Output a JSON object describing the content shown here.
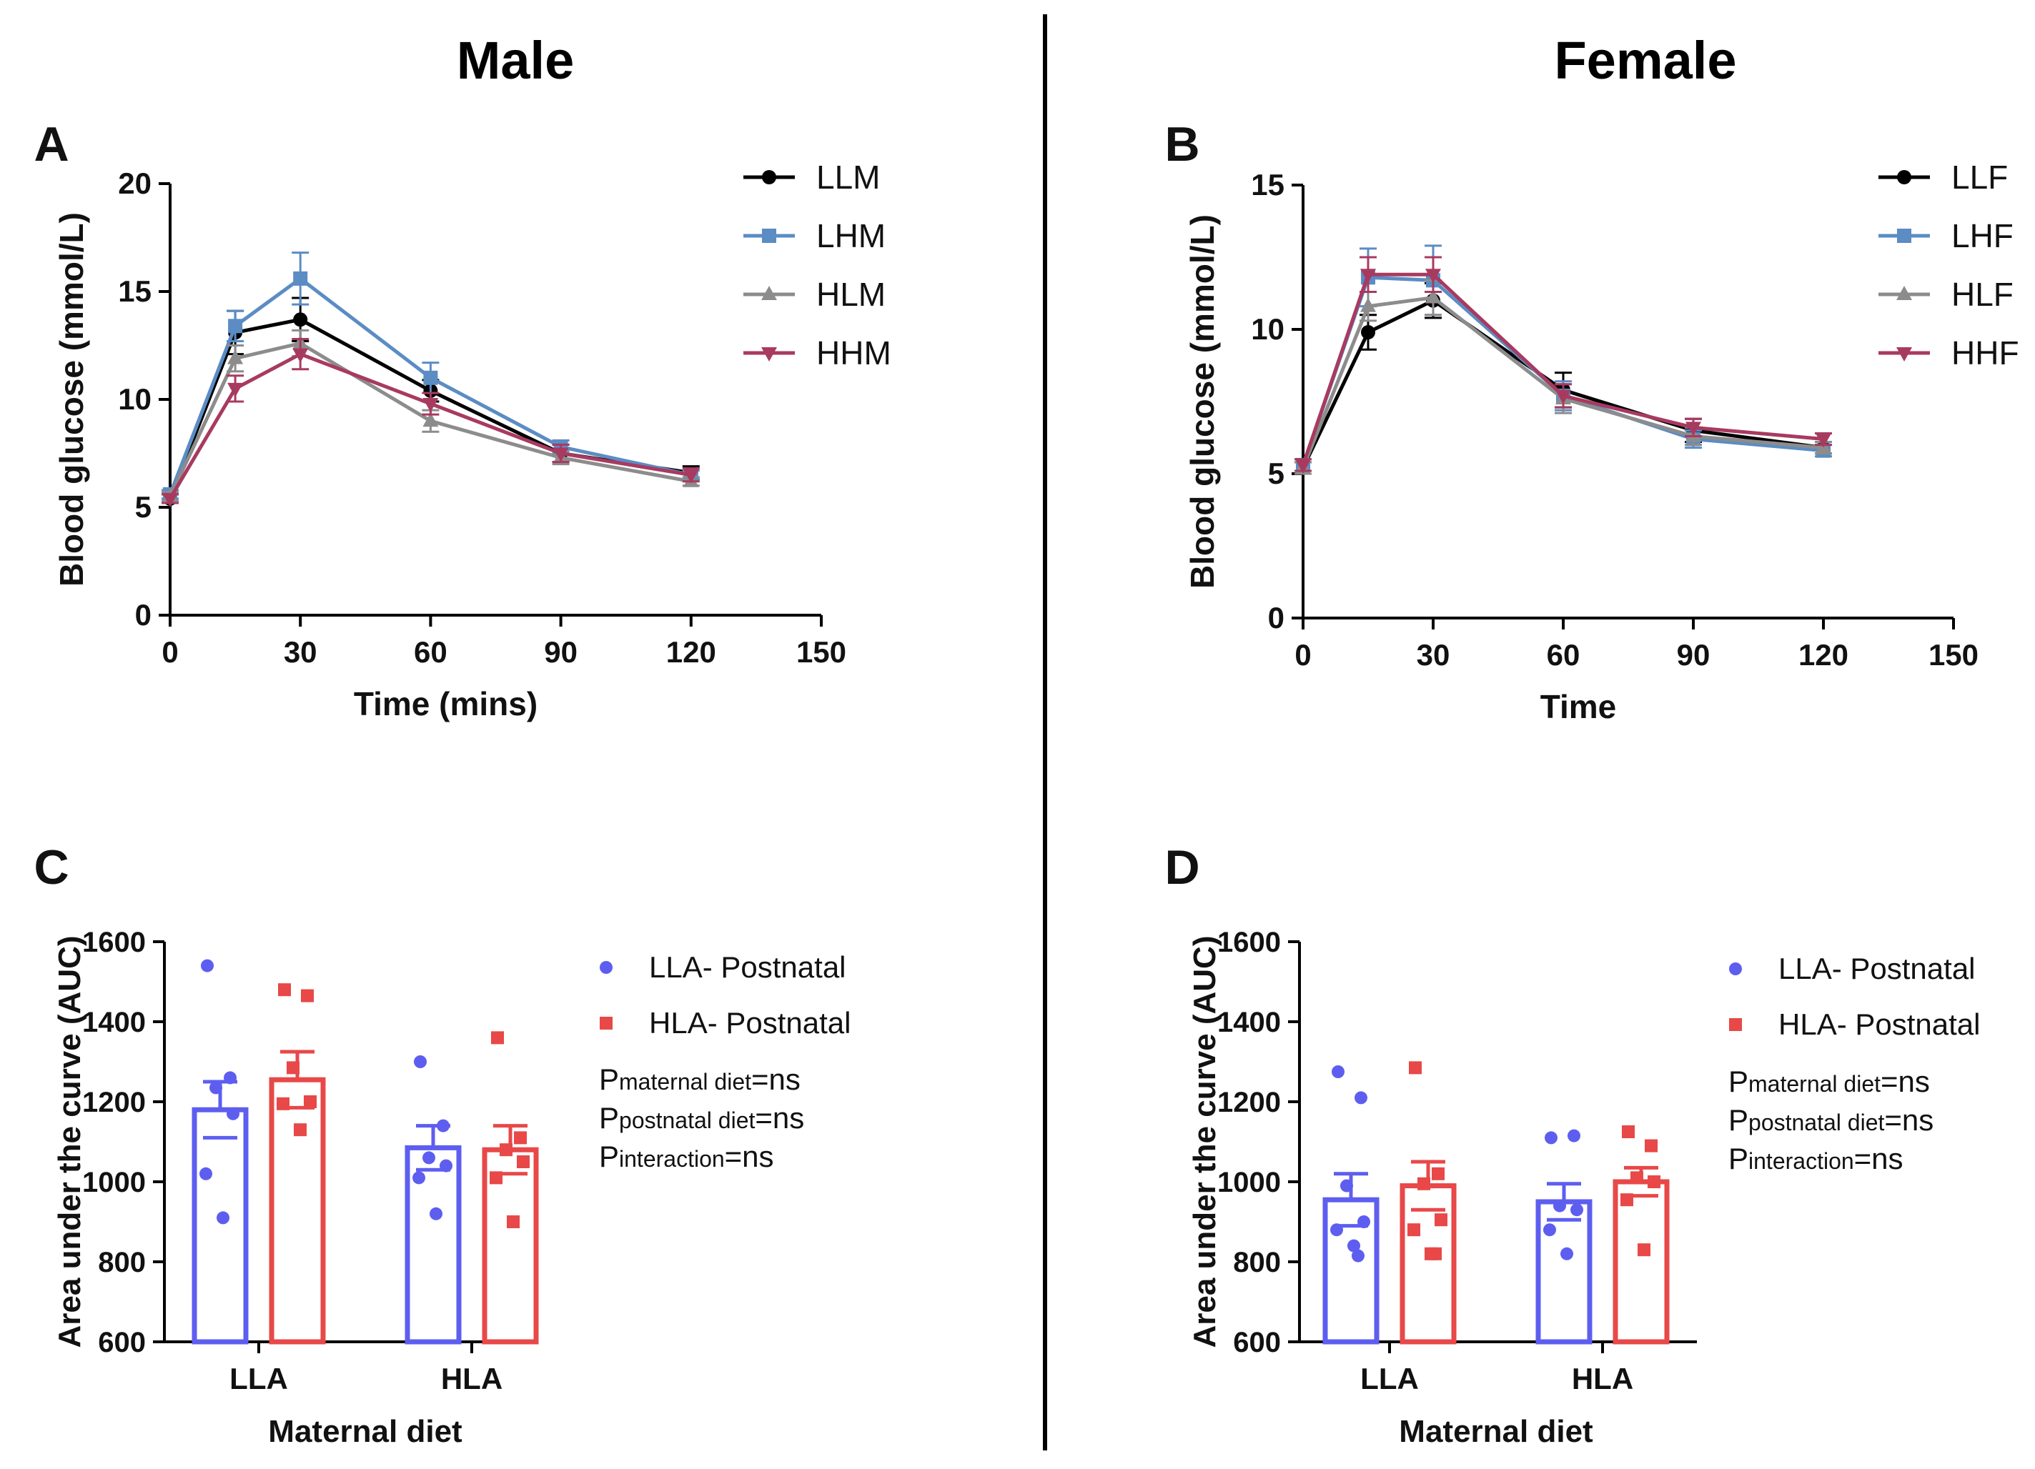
{
  "headers": {
    "left": "Male",
    "right": "Female"
  },
  "legend_colors": {
    "LLM": "#000000",
    "LHM": "#5b8cc4",
    "HLM": "#8c8c8c",
    "HHM": "#a83a60",
    "blue": "#5d5ef0",
    "red": "#e84848"
  },
  "chart_data": [
    {
      "panel": "A",
      "type": "line",
      "title": "Male",
      "xlabel": "Time (mins)",
      "ylabel": "Blood glucose (mmol/L)",
      "xlim": [
        0,
        150
      ],
      "ylim": [
        0,
        20
      ],
      "xticks": [
        0,
        30,
        60,
        90,
        120,
        150
      ],
      "yticks": [
        0,
        5,
        10,
        15,
        20
      ],
      "x": [
        0,
        15,
        30,
        60,
        90,
        120
      ],
      "series": [
        {
          "name": "LLM",
          "color": "#000000",
          "marker": "circle",
          "values": [
            5.4,
            13.1,
            13.7,
            10.4,
            7.5,
            6.6
          ],
          "err": [
            0.2,
            1.0,
            1.0,
            0.5,
            0.4,
            0.3
          ]
        },
        {
          "name": "LHM",
          "color": "#5b8cc4",
          "marker": "square",
          "values": [
            5.6,
            13.4,
            15.6,
            11.0,
            7.8,
            6.5
          ],
          "err": [
            0.2,
            0.7,
            1.2,
            0.7,
            0.3,
            0.2
          ]
        },
        {
          "name": "HLM",
          "color": "#8c8c8c",
          "marker": "triangle-up",
          "values": [
            5.5,
            11.9,
            12.6,
            9.0,
            7.3,
            6.2
          ],
          "err": [
            0.2,
            0.6,
            0.6,
            0.5,
            0.3,
            0.2
          ]
        },
        {
          "name": "HHM",
          "color": "#a83a60",
          "marker": "triangle-down",
          "values": [
            5.4,
            10.5,
            12.1,
            9.8,
            7.5,
            6.5
          ],
          "err": [
            0.2,
            0.6,
            0.7,
            0.5,
            0.4,
            0.3
          ]
        }
      ]
    },
    {
      "panel": "B",
      "type": "line",
      "title": "Female",
      "xlabel": "Time",
      "ylabel": "Blood glucose (mmol/L)",
      "xlim": [
        0,
        150
      ],
      "ylim": [
        0,
        15
      ],
      "xticks": [
        0,
        30,
        60,
        90,
        120,
        150
      ],
      "yticks": [
        0,
        5,
        10,
        15
      ],
      "x": [
        0,
        15,
        30,
        60,
        90,
        120
      ],
      "series": [
        {
          "name": "LLF",
          "color": "#000000",
          "marker": "circle",
          "values": [
            5.2,
            9.9,
            11.0,
            7.9,
            6.5,
            5.9
          ],
          "err": [
            0.2,
            0.6,
            0.6,
            0.6,
            0.4,
            0.2
          ]
        },
        {
          "name": "LHF",
          "color": "#5b8cc4",
          "marker": "square",
          "values": [
            5.3,
            11.8,
            11.7,
            7.7,
            6.2,
            5.8
          ],
          "err": [
            0.2,
            1.0,
            1.2,
            0.5,
            0.3,
            0.2
          ]
        },
        {
          "name": "HLF",
          "color": "#8c8c8c",
          "marker": "triangle-up",
          "values": [
            5.2,
            10.8,
            11.1,
            7.6,
            6.3,
            5.9
          ],
          "err": [
            0.2,
            0.5,
            0.6,
            0.5,
            0.3,
            0.2
          ]
        },
        {
          "name": "HHF",
          "color": "#a83a60",
          "marker": "triangle-down",
          "values": [
            5.3,
            11.9,
            11.9,
            7.7,
            6.6,
            6.2
          ],
          "err": [
            0.2,
            0.6,
            0.6,
            0.4,
            0.3,
            0.2
          ]
        }
      ]
    },
    {
      "panel": "C",
      "type": "bar",
      "xlabel": "Maternal diet",
      "ylabel": "Area under the curve (AUC)",
      "ylim": [
        600,
        1600
      ],
      "yticks": [
        600,
        800,
        1000,
        1200,
        1400,
        1600
      ],
      "categories": [
        "LLA",
        "HLA"
      ],
      "series": [
        {
          "name": "LLA- Postnatal",
          "color": "#5d5ef0",
          "marker": "circle",
          "values": [
            1180,
            1085
          ],
          "err": [
            70,
            55
          ],
          "points": [
            [
              1540,
              1260,
              1235,
              1170,
              1020,
              910
            ],
            [
              1300,
              1140,
              1060,
              1040,
              1010,
              920
            ]
          ]
        },
        {
          "name": "HLA- Postnatal",
          "color": "#e84848",
          "marker": "square",
          "values": [
            1255,
            1080
          ],
          "err": [
            70,
            60
          ],
          "points": [
            [
              1480,
              1465,
              1285,
              1200,
              1195,
              1130
            ],
            [
              1360,
              1110,
              1080,
              1050,
              1010,
              900
            ]
          ]
        }
      ],
      "stats": [
        {
          "p": "P",
          "sub": "maternal diet",
          "eq": "=ns"
        },
        {
          "p": "P",
          "sub": "postnatal diet",
          "eq": "=ns"
        },
        {
          "p": "P",
          "sub": "interaction",
          "eq": "=ns"
        }
      ]
    },
    {
      "panel": "D",
      "type": "bar",
      "xlabel": "Maternal diet",
      "ylabel": "Area under the curve (AUC)",
      "ylim": [
        600,
        1600
      ],
      "yticks": [
        600,
        800,
        1000,
        1200,
        1400,
        1600
      ],
      "categories": [
        "LLA",
        "HLA"
      ],
      "series": [
        {
          "name": "LLA- Postnatal",
          "color": "#5d5ef0",
          "marker": "circle",
          "values": [
            955,
            950
          ],
          "err": [
            65,
            45
          ],
          "points": [
            [
              1275,
              1210,
              990,
              900,
              880,
              840,
              815
            ],
            [
              1110,
              1115,
              940,
              930,
              880,
              820
            ]
          ]
        },
        {
          "name": "HLA- Postnatal",
          "color": "#e84848",
          "marker": "square",
          "values": [
            990,
            1000
          ],
          "err": [
            60,
            35
          ],
          "points": [
            [
              1285,
              1020,
              995,
              905,
              880,
              820,
              820
            ],
            [
              1125,
              1090,
              1010,
              1000,
              955,
              830
            ]
          ]
        }
      ],
      "stats": [
        {
          "p": "P",
          "sub": "maternal diet",
          "eq": "=ns"
        },
        {
          "p": "P",
          "sub": "postnatal diet",
          "eq": "=ns"
        },
        {
          "p": "P",
          "sub": "interaction",
          "eq": "=ns"
        }
      ]
    }
  ]
}
